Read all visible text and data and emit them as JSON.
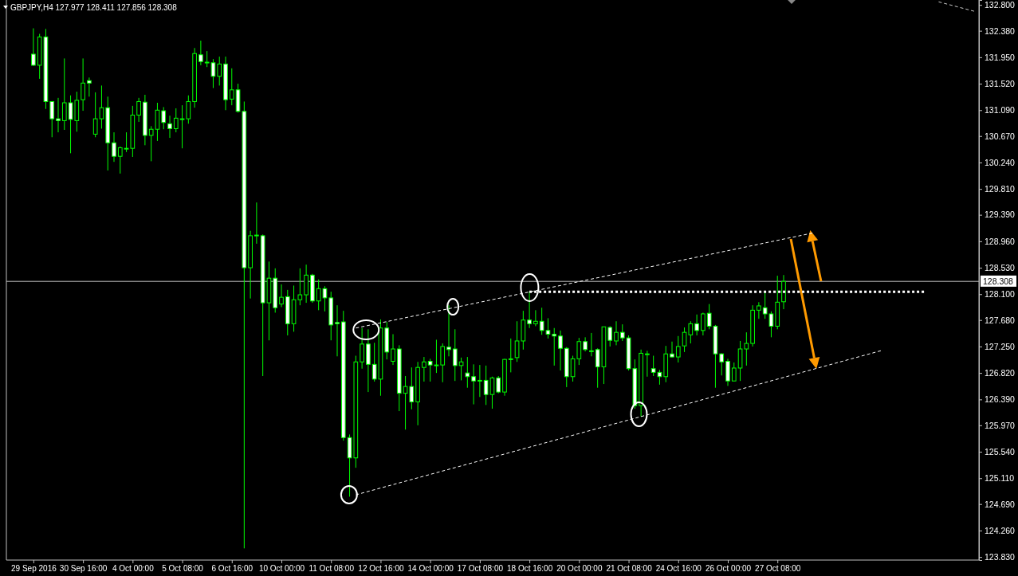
{
  "chart_data": {
    "type": "candlestick",
    "title": "GBPJPY,H4 127.977 128.411 127.856 128.308",
    "color": "#00ff00",
    "categories": [
      "29 Sep 2016",
      null,
      null,
      null,
      null,
      null,
      null,
      null,
      "30 Sep 16:00",
      null,
      null,
      null,
      null,
      null,
      null,
      null,
      "4 Oct 00:00",
      null,
      null,
      null,
      null,
      null,
      null,
      null,
      "5 Oct 08:00",
      null,
      null,
      null,
      null,
      null,
      null,
      null,
      "6 Oct 16:00",
      null,
      null,
      null,
      null,
      null,
      null,
      null,
      "10 Oct 00:00",
      null,
      null,
      null,
      null,
      null,
      null,
      null,
      "11 Oct 08:00",
      null,
      null,
      null,
      null,
      null,
      null,
      null,
      "12 Oct 16:00",
      null,
      null,
      null,
      null,
      null,
      null,
      null,
      "14 Oct 00:00",
      null,
      null,
      null,
      null,
      null,
      null,
      null,
      "17 Oct 08:00",
      null,
      null,
      null,
      null,
      null,
      null,
      null,
      "18 Oct 16:00",
      null,
      null,
      null,
      null,
      null,
      null,
      null,
      "20 Oct 00:00",
      null,
      null,
      null,
      null,
      null,
      null,
      null,
      "21 Oct 08:00",
      null,
      null,
      null,
      null,
      null,
      null,
      null,
      "24 Oct 16:00",
      null,
      null,
      null,
      null,
      null,
      null,
      null,
      "26 Oct 00:00",
      null,
      null,
      null,
      null,
      null,
      null,
      null,
      "27 Oct 08:00",
      null,
      null,
      null,
      null,
      null,
      null,
      null,
      null,
      null,
      null,
      null,
      null,
      null,
      null,
      null,
      null,
      null,
      null,
      null,
      null,
      null,
      null,
      null,
      null,
      null,
      null,
      null,
      null,
      null,
      null,
      null,
      null
    ],
    "ohlc": [
      [
        132.0,
        132.42,
        131.81,
        131.82
      ],
      [
        131.82,
        132.33,
        131.6,
        132.28
      ],
      [
        132.28,
        132.41,
        131.11,
        131.23
      ],
      [
        131.23,
        131.23,
        130.65,
        130.95
      ],
      [
        130.95,
        131.29,
        130.73,
        130.92
      ],
      [
        130.92,
        131.93,
        130.77,
        131.21
      ],
      [
        131.21,
        131.33,
        130.39,
        130.94
      ],
      [
        130.92,
        131.39,
        130.74,
        131.25
      ],
      [
        131.26,
        131.93,
        131.08,
        131.53
      ],
      [
        131.57,
        131.62,
        131.31,
        131.53
      ],
      [
        130.7,
        131.38,
        130.65,
        130.95
      ],
      [
        130.95,
        131.49,
        130.79,
        131.13
      ],
      [
        131.13,
        131.31,
        130.11,
        130.56
      ],
      [
        130.56,
        130.73,
        130.25,
        130.34
      ],
      [
        130.34,
        130.5,
        130.06,
        130.48
      ],
      [
        130.47,
        130.73,
        130.41,
        130.47
      ],
      [
        130.47,
        131.16,
        130.33,
        131.01
      ],
      [
        131.01,
        131.29,
        130.9,
        131.23
      ],
      [
        131.22,
        131.34,
        130.52,
        130.68
      ],
      [
        130.68,
        130.83,
        130.26,
        130.78
      ],
      [
        130.78,
        131.21,
        130.59,
        131.09
      ],
      [
        131.08,
        131.14,
        130.78,
        130.89
      ],
      [
        130.87,
        131.0,
        130.64,
        130.79
      ],
      [
        130.79,
        131.12,
        130.73,
        130.96
      ],
      [
        130.95,
        131.17,
        130.47,
        130.95
      ],
      [
        130.95,
        131.33,
        130.87,
        131.23
      ],
      [
        131.23,
        132.1,
        131.13,
        132.01
      ],
      [
        131.99,
        132.22,
        131.82,
        131.88
      ],
      [
        131.87,
        132.05,
        131.79,
        131.87
      ],
      [
        131.86,
        131.92,
        131.45,
        131.64
      ],
      [
        131.64,
        131.96,
        131.49,
        131.84
      ],
      [
        131.84,
        131.96,
        131.09,
        131.26
      ],
      [
        131.27,
        131.77,
        131.17,
        131.42
      ],
      [
        131.42,
        131.52,
        131.05,
        131.07
      ],
      [
        131.07,
        131.23,
        123.97,
        128.53
      ],
      [
        128.53,
        129.13,
        128.03,
        129.05
      ],
      [
        129.06,
        129.59,
        128.92,
        129.06
      ],
      [
        129.05,
        129.07,
        126.77,
        127.96
      ],
      [
        127.96,
        128.63,
        127.35,
        128.36
      ],
      [
        128.36,
        128.52,
        127.8,
        127.88
      ],
      [
        127.94,
        128.26,
        127.89,
        128.05
      ],
      [
        128.06,
        128.17,
        127.43,
        127.62
      ],
      [
        127.62,
        128.24,
        127.49,
        128.01
      ],
      [
        128.01,
        128.52,
        127.92,
        128.09
      ],
      [
        128.09,
        128.58,
        127.96,
        128.41
      ],
      [
        128.41,
        128.43,
        127.96,
        127.99
      ],
      [
        127.99,
        128.34,
        127.84,
        128.19
      ],
      [
        128.19,
        128.23,
        127.82,
        128.04
      ],
      [
        128.04,
        128.14,
        127.35,
        127.6
      ],
      [
        127.64,
        127.92,
        127.09,
        127.62
      ],
      [
        127.65,
        127.83,
        125.72,
        125.77
      ],
      [
        125.77,
        125.82,
        124.81,
        125.44
      ],
      [
        125.44,
        127.1,
        125.28,
        127.0
      ],
      [
        127.0,
        127.55,
        126.89,
        127.29
      ],
      [
        127.29,
        127.53,
        126.51,
        126.96
      ],
      [
        126.96,
        127.31,
        126.68,
        126.72
      ],
      [
        126.72,
        127.69,
        126.45,
        127.55
      ],
      [
        127.55,
        127.65,
        127.04,
        127.16
      ],
      [
        127.01,
        127.45,
        126.95,
        127.21
      ],
      [
        127.21,
        127.27,
        126.2,
        126.49
      ],
      [
        126.49,
        126.77,
        125.9,
        126.6
      ],
      [
        126.6,
        126.91,
        126.23,
        126.35
      ],
      [
        126.35,
        127.0,
        125.97,
        126.91
      ],
      [
        126.91,
        127.08,
        126.68,
        127.0
      ],
      [
        127.01,
        127.05,
        126.68,
        126.95
      ],
      [
        126.95,
        127.36,
        126.82,
        126.95
      ],
      [
        126.95,
        127.3,
        126.67,
        127.25
      ],
      [
        127.24,
        127.92,
        127.09,
        127.2
      ],
      [
        127.21,
        127.53,
        126.69,
        126.94
      ],
      [
        126.94,
        127.07,
        126.7,
        127.0
      ],
      [
        126.82,
        127.08,
        126.58,
        126.76
      ],
      [
        126.76,
        126.96,
        126.31,
        126.69
      ],
      [
        126.7,
        126.95,
        126.43,
        126.7
      ],
      [
        126.7,
        126.94,
        126.3,
        126.47
      ],
      [
        126.47,
        126.76,
        126.24,
        126.74
      ],
      [
        126.74,
        126.77,
        126.49,
        126.51
      ],
      [
        126.51,
        127.05,
        126.45,
        127.04
      ],
      [
        127.05,
        127.38,
        126.83,
        127.05
      ],
      [
        127.07,
        127.66,
        127.0,
        127.34
      ],
      [
        127.34,
        127.83,
        127.2,
        127.68
      ],
      [
        127.68,
        128.14,
        127.55,
        127.62
      ],
      [
        127.62,
        127.84,
        127.58,
        127.66
      ],
      [
        127.66,
        127.88,
        127.44,
        127.51
      ],
      [
        127.51,
        127.71,
        127.38,
        127.45
      ],
      [
        127.45,
        127.55,
        126.94,
        127.42
      ],
      [
        127.42,
        127.51,
        126.86,
        127.22
      ],
      [
        127.22,
        127.24,
        126.59,
        126.76
      ],
      [
        126.76,
        127.1,
        126.68,
        127.05
      ],
      [
        127.05,
        127.39,
        126.95,
        127.33
      ],
      [
        127.33,
        127.4,
        127.17,
        127.2
      ],
      [
        127.18,
        127.47,
        127.09,
        127.18
      ],
      [
        127.2,
        127.22,
        126.58,
        126.92
      ],
      [
        126.92,
        127.57,
        126.64,
        127.57
      ],
      [
        127.56,
        127.58,
        127.25,
        127.35
      ],
      [
        127.34,
        127.66,
        127.27,
        127.48
      ],
      [
        127.48,
        127.61,
        127.34,
        127.39
      ],
      [
        127.39,
        127.43,
        126.86,
        126.89
      ],
      [
        126.89,
        127.04,
        126.24,
        126.29
      ],
      [
        126.29,
        127.2,
        126.11,
        127.14
      ],
      [
        127.13,
        127.18,
        126.76,
        127.13
      ],
      [
        126.89,
        127.1,
        126.77,
        126.83
      ],
      [
        126.83,
        126.87,
        126.63,
        126.76
      ],
      [
        126.76,
        127.26,
        126.67,
        127.13
      ],
      [
        127.13,
        127.33,
        127.07,
        127.08
      ],
      [
        127.08,
        127.42,
        126.99,
        127.25
      ],
      [
        127.26,
        127.56,
        127.16,
        127.48
      ],
      [
        127.44,
        127.66,
        127.3,
        127.62
      ],
      [
        127.62,
        127.77,
        127.43,
        127.51
      ],
      [
        127.51,
        127.8,
        127.43,
        127.78
      ],
      [
        127.79,
        127.94,
        127.53,
        127.58
      ],
      [
        127.58,
        127.6,
        126.58,
        127.13
      ],
      [
        127.13,
        127.14,
        126.78,
        127.0
      ],
      [
        127.01,
        127.05,
        126.61,
        126.69
      ],
      [
        126.69,
        126.99,
        126.69,
        126.9
      ],
      [
        126.9,
        127.34,
        126.69,
        127.21
      ],
      [
        127.21,
        127.48,
        126.94,
        127.3
      ],
      [
        127.3,
        127.92,
        127.25,
        127.84
      ],
      [
        127.84,
        127.97,
        127.7,
        127.91
      ],
      [
        127.88,
        128.13,
        127.7,
        127.78
      ],
      [
        127.78,
        127.82,
        127.4,
        127.58
      ],
      [
        127.58,
        128.4,
        127.53,
        127.97
      ],
      [
        127.977,
        128.411,
        127.856,
        128.308
      ],
      null,
      null,
      null,
      null,
      null,
      null,
      null,
      null,
      null,
      null,
      null,
      null,
      null,
      null,
      null,
      null,
      null,
      null,
      null,
      null,
      null,
      null,
      null,
      null,
      null,
      null,
      null,
      null,
      null,
      null,
      null
    ],
    "series": [
      {
        "type": "line",
        "color": "#ffffff",
        "line_style": "dashed",
        "values": [
          null,
          null,
          null,
          null,
          null,
          null,
          null,
          null,
          null,
          null,
          null,
          null,
          null,
          null,
          null,
          null,
          null,
          null,
          null,
          null,
          null,
          null,
          null,
          null,
          null,
          null,
          null,
          null,
          null,
          null,
          null,
          null,
          null,
          null,
          null,
          null,
          null,
          null,
          null,
          null,
          null,
          null,
          null,
          null,
          null,
          null,
          null,
          null,
          null,
          null,
          null,
          null,
          127.55,
          null,
          null,
          null,
          null,
          null,
          null,
          null,
          null,
          null,
          null,
          null,
          null,
          null,
          null,
          null,
          null,
          null,
          null,
          null,
          null,
          null,
          null,
          null,
          null,
          null,
          null,
          null,
          null,
          null,
          null,
          null,
          null,
          null,
          null,
          null,
          null,
          null,
          null,
          null,
          null,
          null,
          null,
          null,
          null,
          null,
          null,
          null,
          null,
          null,
          null,
          null,
          null,
          null,
          null,
          null,
          null,
          null,
          null,
          null,
          null,
          null,
          null,
          null,
          null,
          null,
          null,
          null,
          null,
          null,
          null,
          null,
          null,
          null,
          129.1,
          null,
          null,
          null,
          null,
          null,
          null,
          null,
          null,
          null,
          null,
          null,
          null,
          null,
          null,
          null,
          null,
          null,
          null,
          null,
          null,
          null,
          null,
          null,
          null,
          null,
          null
        ]
      },
      {
        "type": "line",
        "color": "#ffffff",
        "line_style": "dashed",
        "values": [
          null,
          null,
          null,
          null,
          null,
          null,
          null,
          null,
          null,
          null,
          null,
          null,
          null,
          null,
          null,
          null,
          null,
          null,
          null,
          null,
          null,
          null,
          null,
          null,
          null,
          null,
          null,
          null,
          null,
          null,
          null,
          null,
          null,
          null,
          null,
          null,
          null,
          null,
          null,
          null,
          null,
          null,
          null,
          null,
          null,
          null,
          null,
          null,
          null,
          null,
          null,
          null,
          124.84,
          null,
          null,
          null,
          null,
          null,
          null,
          null,
          null,
          null,
          null,
          null,
          null,
          null,
          null,
          null,
          null,
          null,
          null,
          null,
          null,
          null,
          null,
          null,
          null,
          null,
          null,
          null,
          null,
          null,
          null,
          null,
          null,
          null,
          null,
          null,
          null,
          null,
          null,
          null,
          null,
          null,
          null,
          null,
          null,
          null,
          null,
          null,
          null,
          null,
          null,
          null,
          null,
          null,
          null,
          null,
          null,
          null,
          null,
          null,
          null,
          null,
          null,
          null,
          null,
          null,
          null,
          null,
          null,
          null,
          null,
          null,
          null,
          null,
          null,
          null,
          null,
          null,
          null,
          null,
          null,
          null,
          null,
          null,
          null,
          127.19,
          null,
          null,
          null,
          null,
          null,
          null,
          null,
          null,
          null,
          null,
          null,
          null,
          null,
          null,
          null
        ]
      },
      {
        "type": "line",
        "color": "#ffffff",
        "line_style": "dotted",
        "values": [
          null,
          null,
          null,
          null,
          null,
          null,
          null,
          null,
          null,
          null,
          null,
          null,
          null,
          null,
          null,
          null,
          null,
          null,
          null,
          null,
          null,
          null,
          null,
          null,
          null,
          null,
          null,
          null,
          null,
          null,
          null,
          null,
          null,
          null,
          null,
          null,
          null,
          null,
          null,
          null,
          null,
          null,
          null,
          null,
          null,
          null,
          null,
          null,
          null,
          null,
          null,
          null,
          null,
          null,
          null,
          null,
          null,
          null,
          null,
          null,
          null,
          null,
          null,
          null,
          null,
          null,
          null,
          null,
          null,
          null,
          null,
          null,
          null,
          null,
          null,
          null,
          null,
          null,
          null,
          null,
          128.14,
          null,
          null,
          null,
          null,
          null,
          null,
          null,
          null,
          null,
          null,
          null,
          null,
          null,
          null,
          null,
          null,
          null,
          null,
          null,
          null,
          null,
          null,
          null,
          null,
          null,
          null,
          null,
          null,
          null,
          null,
          null,
          null,
          null,
          null,
          null,
          null,
          null,
          null,
          null,
          null,
          null,
          null,
          null,
          null,
          null,
          null,
          null,
          null,
          null,
          null,
          null,
          null,
          null,
          null,
          null,
          null,
          null,
          null,
          null,
          null,
          null,
          null,
          null,
          128.14,
          null,
          null,
          null,
          null,
          null,
          null,
          null,
          null
        ]
      },
      {
        "type": "line",
        "color": "#c8c8c8",
        "line_style": "dashed",
        "values": [
          null,
          null,
          null,
          null,
          null,
          null,
          null,
          null,
          null,
          null,
          null,
          null,
          null,
          null,
          null,
          null,
          null,
          null,
          null,
          null,
          null,
          null,
          null,
          null,
          null,
          null,
          null,
          null,
          null,
          null,
          null,
          null,
          null,
          null,
          null,
          null,
          null,
          null,
          null,
          null,
          null,
          null,
          null,
          null,
          null,
          null,
          null,
          null,
          null,
          null,
          null,
          null,
          null,
          null,
          null,
          null,
          null,
          null,
          null,
          null,
          null,
          null,
          null,
          null,
          null,
          null,
          null,
          null,
          null,
          null,
          null,
          null,
          null,
          null,
          null,
          null,
          null,
          null,
          null,
          null,
          null,
          null,
          null,
          null,
          null,
          null,
          null,
          null,
          null,
          null,
          null,
          null,
          null,
          null,
          null,
          null,
          null,
          null,
          null,
          null,
          null,
          null,
          null,
          null,
          null,
          null,
          null,
          null,
          null,
          null,
          null,
          null,
          null,
          null,
          null,
          null,
          null,
          null,
          null,
          null,
          null,
          null,
          null,
          null,
          null,
          null,
          null,
          null,
          null,
          null,
          null,
          null,
          null,
          null,
          null,
          null,
          null,
          null,
          null,
          null,
          null,
          null,
          null,
          null,
          null,
          null,
          132.85,
          null,
          null,
          null,
          null,
          null,
          132.69
        ]
      }
    ],
    "ref_lines": [
      {
        "axis": "y",
        "value": 128.308,
        "label": "128.308",
        "color": "#c0c0c0"
      }
    ],
    "ylim": [
      123.78,
      132.88
    ],
    "yticks": [
      {
        "value": 132.8,
        "label": "132.800"
      },
      {
        "value": 132.38,
        "label": "132.380"
      },
      {
        "value": 131.95,
        "label": "131.950"
      },
      {
        "value": 131.52,
        "label": "131.520"
      },
      {
        "value": 131.09,
        "label": "131.090"
      },
      {
        "value": 130.67,
        "label": "130.670"
      },
      {
        "value": 130.24,
        "label": "130.240"
      },
      {
        "value": 129.81,
        "label": "129.810"
      },
      {
        "value": 129.39,
        "label": "129.390"
      },
      {
        "value": 128.96,
        "label": "128.960"
      },
      {
        "value": 128.53,
        "label": "128.530"
      },
      {
        "value": 128.1,
        "label": "128.100"
      },
      {
        "value": 127.68,
        "label": "127.680"
      },
      {
        "value": 127.25,
        "label": "127.250"
      },
      {
        "value": 126.82,
        "label": "126.820"
      },
      {
        "value": 126.39,
        "label": "126.390"
      },
      {
        "value": 125.97,
        "label": "125.970"
      },
      {
        "value": 125.54,
        "label": "125.540"
      },
      {
        "value": 125.11,
        "label": "125.110"
      },
      {
        "value": 124.69,
        "label": "124.690"
      },
      {
        "value": 124.26,
        "label": "124.260"
      },
      {
        "value": 123.83,
        "label": "123.830"
      }
    ]
  }
}
